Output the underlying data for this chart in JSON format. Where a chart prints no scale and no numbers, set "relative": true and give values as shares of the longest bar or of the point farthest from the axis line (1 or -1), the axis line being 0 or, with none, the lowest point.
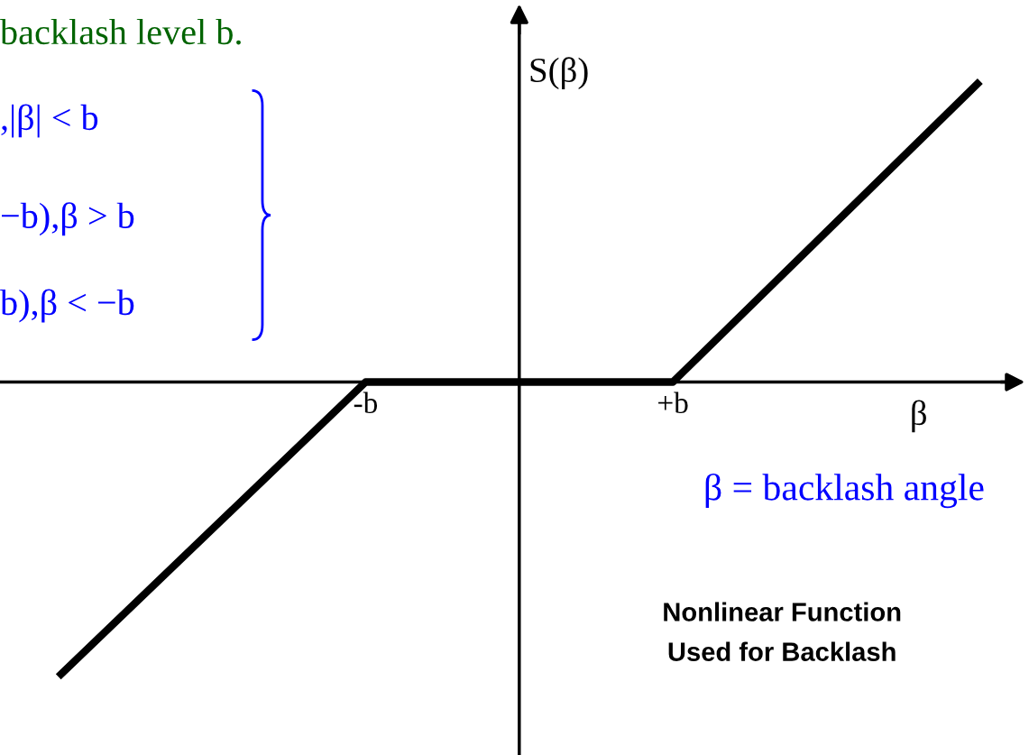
{
  "chart_data": {
    "type": "line",
    "relative": true,
    "categories": [
      null,
      "-b",
      "+b",
      null
    ],
    "series": [
      {
        "color": "#000000",
        "values": [
          -0.98,
          0,
          0,
          1
        ]
      }
    ],
    "xlabel": "β",
    "ylabel": "S(β)",
    "grid": false,
    "marker": "none",
    "line_style": "solid",
    "annotations": [
      "backlash level b.",
      ",|β| < b",
      "−b),β > b",
      "b),β < −b",
      "β = backlash angle",
      "Nonlinear Function\nUsed for Backlash"
    ]
  }
}
